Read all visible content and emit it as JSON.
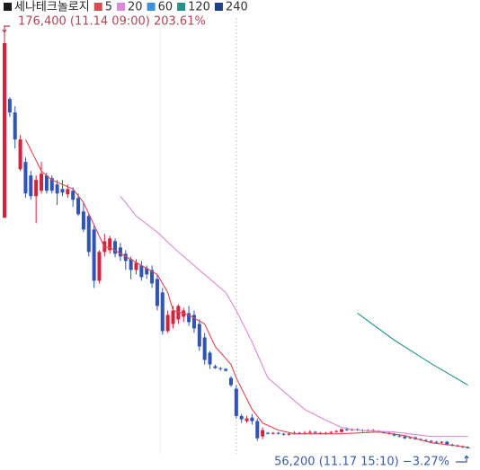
{
  "chart_data": {
    "type": "candlestick",
    "up_color": "#d0233c",
    "down_color": "#2f54b5",
    "ylim": [
      52000,
      180000
    ],
    "series": [
      {
        "name": "세나테크놀로지",
        "color": "#1a1a1a",
        "open": [
          122800,
          157120,
          153220,
          136840,
          138920,
          135020,
          129040,
          130600,
          135020,
          134240,
          132420,
          131120,
          129560,
          130600,
          128520,
          124620,
          123320,
          119420,
          104600,
          112920,
          113440,
          116040,
          114220,
          112400,
          110840,
          107720,
          109020,
          108240,
          107720,
          105120,
          101220,
          90040,
          92120,
          93420,
          94200,
          95240,
          94720,
          92120,
          88220,
          83800,
          79900,
          79380,
          79120,
          76520,
          73400,
          65520,
          64040,
          65080,
          64040,
          59620,
          60660,
          60400,
          60660,
          60400,
          60140,
          60400,
          60660,
          60400,
          60660,
          60920,
          60660,
          60400,
          60660,
          60920,
          60920,
          61700,
          61440,
          61700,
          61440,
          61180,
          61440,
          61180,
          60920,
          60660,
          60400,
          59880,
          59620,
          59100,
          59360,
          58840,
          58580,
          58320,
          58060,
          57800,
          58060,
          57280,
          57020,
          56760,
          56500
        ],
        "high": [
          176400,
          157640,
          155040,
          146720,
          140220,
          136320,
          135020,
          138920,
          135800,
          135020,
          133720,
          133720,
          132420,
          131640,
          129820,
          127220,
          123840,
          120720,
          113440,
          118120,
          117600,
          116820,
          115520,
          113440,
          111620,
          110840,
          110320,
          109020,
          109020,
          106420,
          102520,
          96020,
          97320,
          97840,
          96800,
          97320,
          96020,
          93420,
          89520,
          84320,
          80420,
          79640,
          79380,
          77040,
          74440,
          66120,
          65600,
          66120,
          64820,
          62220,
          60920,
          60920,
          60920,
          60660,
          60660,
          61180,
          60920,
          61180,
          61440,
          61180,
          60920,
          60920,
          61180,
          61440,
          61960,
          62220,
          61960,
          61960,
          61700,
          61700,
          61700,
          61440,
          61180,
          60920,
          60660,
          60140,
          59880,
          59620,
          59620,
          59100,
          58840,
          58580,
          58320,
          58320,
          58320,
          57540,
          57280,
          57020,
          56760
        ],
        "low": [
          122800,
          151920,
          142820,
          136320,
          128520,
          128000,
          121240,
          129820,
          129820,
          129820,
          126440,
          129040,
          128520,
          125920,
          123320,
          118640,
          111620,
          102520,
          103820,
          111620,
          112400,
          111360,
          110320,
          107720,
          105020,
          106420,
          104600,
          105120,
          102520,
          96020,
          89000,
          89520,
          90820,
          92120,
          92640,
          91600,
          89520,
          84320,
          80420,
          79120,
          79120,
          78600,
          78340,
          73920,
          64820,
          63520,
          63520,
          63000,
          58320,
          58840,
          60140,
          60140,
          60140,
          59880,
          59880,
          60140,
          60140,
          60140,
          60400,
          60400,
          60140,
          60140,
          60400,
          60660,
          60660,
          61180,
          61180,
          61180,
          60920,
          60920,
          60920,
          60660,
          60400,
          60140,
          59620,
          59360,
          58840,
          58840,
          58580,
          58320,
          58060,
          57800,
          57540,
          57540,
          57020,
          56760,
          56500,
          56240,
          56200
        ],
        "close": [
          173240,
          153220,
          145420,
          145420,
          129820,
          129040,
          133720,
          135540,
          130600,
          130600,
          129820,
          130080,
          131120,
          128000,
          123840,
          119420,
          112920,
          104600,
          112920,
          116040,
          116820,
          112400,
          111620,
          110320,
          107720,
          109800,
          105640,
          106420,
          103820,
          97320,
          90040,
          94720,
          96020,
          97320,
          96020,
          92640,
          90820,
          85620,
          81720,
          80420,
          79380,
          79120,
          78600,
          74440,
          65520,
          64560,
          64820,
          64040,
          59100,
          61440,
          60400,
          60660,
          60400,
          60140,
          60400,
          60660,
          60400,
          60660,
          60920,
          60660,
          60400,
          60660,
          60920,
          61180,
          61700,
          61440,
          61700,
          61440,
          61180,
          61440,
          61180,
          60920,
          60660,
          60400,
          59880,
          59620,
          59100,
          59360,
          58840,
          58580,
          58320,
          58060,
          57800,
          58060,
          57280,
          57020,
          56760,
          56500,
          56200
        ]
      },
      {
        "name": "5",
        "color": "#e2464e",
        "x": [
          4,
          7,
          9,
          13,
          15,
          17,
          19,
          20,
          23,
          26,
          29,
          31,
          32,
          35,
          38,
          40,
          43,
          44,
          47,
          49,
          52,
          55,
          64,
          71,
          76,
          81,
          88
        ],
        "values": [
          145420,
          136320,
          133720,
          131120,
          127220,
          120720,
          114220,
          114220,
          111620,
          109020,
          106420,
          101220,
          96020,
          94720,
          92120,
          85620,
          80420,
          76520,
          67420,
          63520,
          61440,
          60400,
          60400,
          60920,
          59880,
          57800,
          56500
        ]
      },
      {
        "name": "20",
        "color": "#d98ad9",
        "x": [
          22,
          25,
          29,
          33,
          38,
          42,
          44,
          47,
          50,
          54,
          57,
          61,
          64,
          67,
          74,
          81,
          88
        ],
        "values": [
          129040,
          123320,
          118640,
          112920,
          106420,
          101220,
          96020,
          86920,
          76520,
          71320,
          67420,
          64300,
          62220,
          61440,
          60920,
          59620,
          59620
        ]
      },
      {
        "name": "60",
        "color": "#3d8fe0"
      },
      {
        "name": "120",
        "color": "#24938a",
        "x": [
          67,
          74,
          81,
          88
        ],
        "values": [
          95240,
          87440,
          80680,
          74440
        ]
      },
      {
        "name": "240",
        "color": "#1d3f8c"
      }
    ],
    "annotations": [
      {
        "text": "176,400 (11.14 09:00) 203.61%",
        "color": "#b0465a"
      },
      {
        "text": "56,200 (11.17 15:10) −3.27%",
        "color": "#3a5ca8"
      }
    ]
  }
}
